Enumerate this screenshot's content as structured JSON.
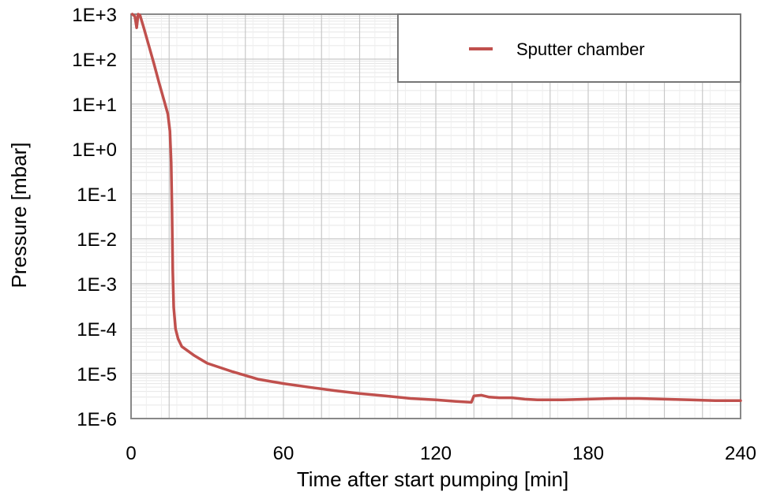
{
  "chart_data": {
    "type": "line",
    "title": "",
    "xlabel": "Time after start pumping [min]",
    "ylabel": "Pressure [mbar]",
    "xlim": [
      0,
      240
    ],
    "ylim": [
      1e-06,
      1000.0
    ],
    "yscale": "log",
    "grid": true,
    "legend_position": "top-right",
    "x_ticks": [
      "0",
      "60",
      "120",
      "180",
      "240"
    ],
    "y_ticks": [
      "1E-6",
      "1E-5",
      "1E-4",
      "1E-3",
      "1E-2",
      "1E-1",
      "1E+0",
      "1E+1",
      "1E+2",
      "1E+3"
    ],
    "series": [
      {
        "name": "Sputter chamber",
        "color": "#c0504d",
        "points": [
          [
            0.5,
            1000
          ],
          [
            1.5,
            900
          ],
          [
            2.2,
            500
          ],
          [
            2.8,
            1000
          ],
          [
            3.5,
            950
          ],
          [
            5,
            500
          ],
          [
            7,
            200
          ],
          [
            9,
            80
          ],
          [
            11,
            30
          ],
          [
            13,
            12
          ],
          [
            14.5,
            6
          ],
          [
            15.3,
            2.5
          ],
          [
            15.8,
            0.5
          ],
          [
            16.1,
            0.05
          ],
          [
            16.4,
            0.002
          ],
          [
            16.8,
            0.0003
          ],
          [
            17.5,
            0.0001
          ],
          [
            18.5,
            6e-05
          ],
          [
            20,
            4e-05
          ],
          [
            25,
            2.5e-05
          ],
          [
            30,
            1.7e-05
          ],
          [
            40,
            1.1e-05
          ],
          [
            50,
            7.5e-06
          ],
          [
            60,
            6e-06
          ],
          [
            70,
            5e-06
          ],
          [
            80,
            4.2e-06
          ],
          [
            90,
            3.6e-06
          ],
          [
            100,
            3.2e-06
          ],
          [
            110,
            2.8e-06
          ],
          [
            120,
            2.6e-06
          ],
          [
            128,
            2.4e-06
          ],
          [
            134,
            2.3e-06
          ],
          [
            135,
            3.2e-06
          ],
          [
            138,
            3.3e-06
          ],
          [
            141,
            3e-06
          ],
          [
            145,
            2.9e-06
          ],
          [
            150,
            2.9e-06
          ],
          [
            155,
            2.7e-06
          ],
          [
            160,
            2.6e-06
          ],
          [
            170,
            2.6e-06
          ],
          [
            180,
            2.7e-06
          ],
          [
            190,
            2.8e-06
          ],
          [
            200,
            2.8e-06
          ],
          [
            210,
            2.7e-06
          ],
          [
            220,
            2.6e-06
          ],
          [
            230,
            2.5e-06
          ],
          [
            240,
            2.5e-06
          ]
        ]
      }
    ]
  }
}
